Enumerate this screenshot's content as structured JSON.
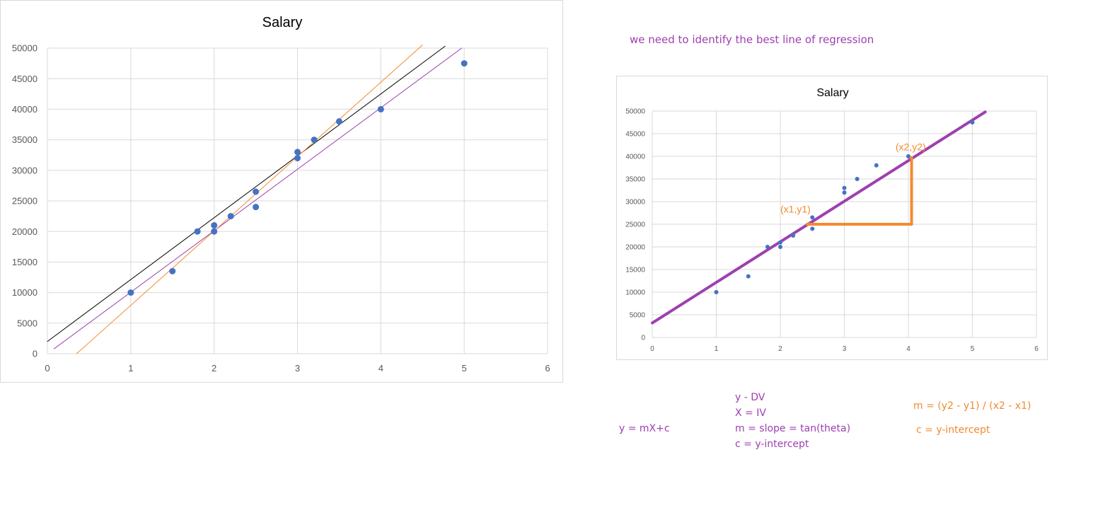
{
  "colors": {
    "gridline": "#d9d9d9",
    "tick_text": "#595959",
    "title_text": "#595959",
    "point": "#4472c4",
    "regression_line": "#9e3fb0",
    "orange_line": "#f28a30",
    "black_line": "#000000"
  },
  "heading_note": "we need to identify the best line of regression",
  "notes": {
    "equation": "y = mX+c",
    "definitions": [
      "y - DV",
      "X = IV",
      "m = slope = tan(theta)",
      "c = y-intercept"
    ],
    "slope_formula": "m = (y2 - y1) / (x2 - x1)",
    "intercept": "c = y-intercept"
  },
  "chart_data": [
    {
      "type": "scatter",
      "title": "Salary",
      "xlabel": "",
      "ylabel": "",
      "xlim": [
        0,
        6
      ],
      "ylim": [
        0,
        50000
      ],
      "x_ticks": [
        0,
        1,
        2,
        3,
        4,
        5,
        6
      ],
      "y_ticks": [
        0,
        5000,
        10000,
        15000,
        20000,
        25000,
        30000,
        35000,
        40000,
        45000,
        50000
      ],
      "grid": true,
      "points": [
        [
          1,
          10000
        ],
        [
          1.5,
          13500
        ],
        [
          1.8,
          20000
        ],
        [
          2,
          21000
        ],
        [
          2,
          20000
        ],
        [
          2.2,
          22500
        ],
        [
          2.5,
          26500
        ],
        [
          2.5,
          24000
        ],
        [
          3,
          33000
        ],
        [
          3,
          32000
        ],
        [
          3.2,
          35000
        ],
        [
          3.5,
          38000
        ],
        [
          4,
          40000
        ],
        [
          5,
          47500
        ]
      ],
      "lines": [
        {
          "color": "black_line",
          "x": [
            0,
            4.77
          ],
          "y": [
            2000,
            50300
          ]
        },
        {
          "color": "regression_line",
          "x": [
            0.08,
            4.97
          ],
          "y": [
            800,
            50000
          ]
        },
        {
          "color": "orange_line",
          "x": [
            0.35,
            4.5
          ],
          "y": [
            0,
            50500
          ]
        }
      ]
    },
    {
      "type": "scatter",
      "title": "Salary",
      "xlabel": "",
      "ylabel": "",
      "xlim": [
        0,
        6
      ],
      "ylim": [
        0,
        50000
      ],
      "x_ticks": [
        0,
        1,
        2,
        3,
        4,
        5,
        6
      ],
      "y_ticks": [
        0,
        5000,
        10000,
        15000,
        20000,
        25000,
        30000,
        35000,
        40000,
        45000,
        50000
      ],
      "grid": true,
      "points": [
        [
          1,
          10000
        ],
        [
          1.5,
          13500
        ],
        [
          1.8,
          20000
        ],
        [
          2,
          21000
        ],
        [
          2,
          20000
        ],
        [
          2.2,
          22500
        ],
        [
          2.5,
          26500
        ],
        [
          2.5,
          24000
        ],
        [
          3,
          33000
        ],
        [
          3,
          32000
        ],
        [
          3.2,
          35000
        ],
        [
          3.5,
          38000
        ],
        [
          4,
          40000
        ],
        [
          5,
          47500
        ]
      ],
      "lines": [
        {
          "color": "regression_line",
          "x": [
            0,
            5.2
          ],
          "y": [
            3200,
            49800
          ]
        }
      ],
      "annotations": [
        {
          "text": "(x1,y1)",
          "x": 2.0,
          "y": 27600
        },
        {
          "text": "(x2,y2)",
          "x": 3.8,
          "y": 41300
        }
      ],
      "triangle": {
        "x1": 2.4,
        "y1": 25000,
        "x2": 4.05,
        "y2": 40000
      }
    }
  ]
}
